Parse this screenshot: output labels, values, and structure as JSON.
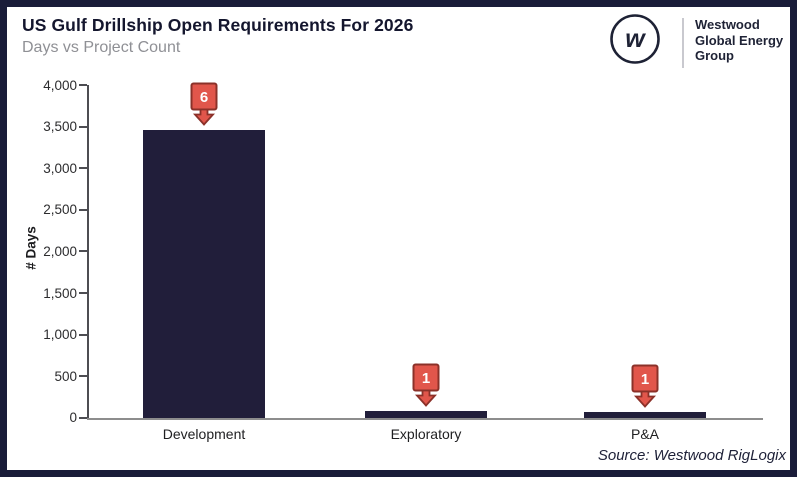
{
  "header": {
    "title": "US Gulf Drillship Open Requirements For 2026",
    "subtitle": "Days vs Project Count",
    "logo": {
      "mark": "w",
      "lines": [
        "Westwood",
        "Global Energy",
        "Group"
      ]
    }
  },
  "chart_data": {
    "type": "bar",
    "title": "US Gulf Drillship Open Requirements For 2026",
    "subtitle": "Days vs Project Count",
    "categories": [
      "Development",
      "Exploratory",
      "P&A"
    ],
    "values": [
      3460,
      85,
      70
    ],
    "project_counts": [
      "6",
      "1",
      "1"
    ],
    "xlabel": "",
    "ylabel": "# Days",
    "ylim": [
      0,
      4000
    ],
    "ytick_step": 500,
    "yticks": [
      "4,000",
      "3,500",
      "3,000",
      "2,500",
      "2,000",
      "1,500",
      "1,000",
      "500",
      "0"
    ],
    "grid": false,
    "legend": "none",
    "colors": {
      "bar": "#211e3a",
      "count_tag": "#e1564b",
      "count_tag_border": "#8b3129",
      "frame_border": "#1a1c39",
      "axis": "#4d4d52",
      "baseline": "#8d8d8d"
    }
  },
  "footer": {
    "source": "Source: Westwood RigLogix"
  }
}
